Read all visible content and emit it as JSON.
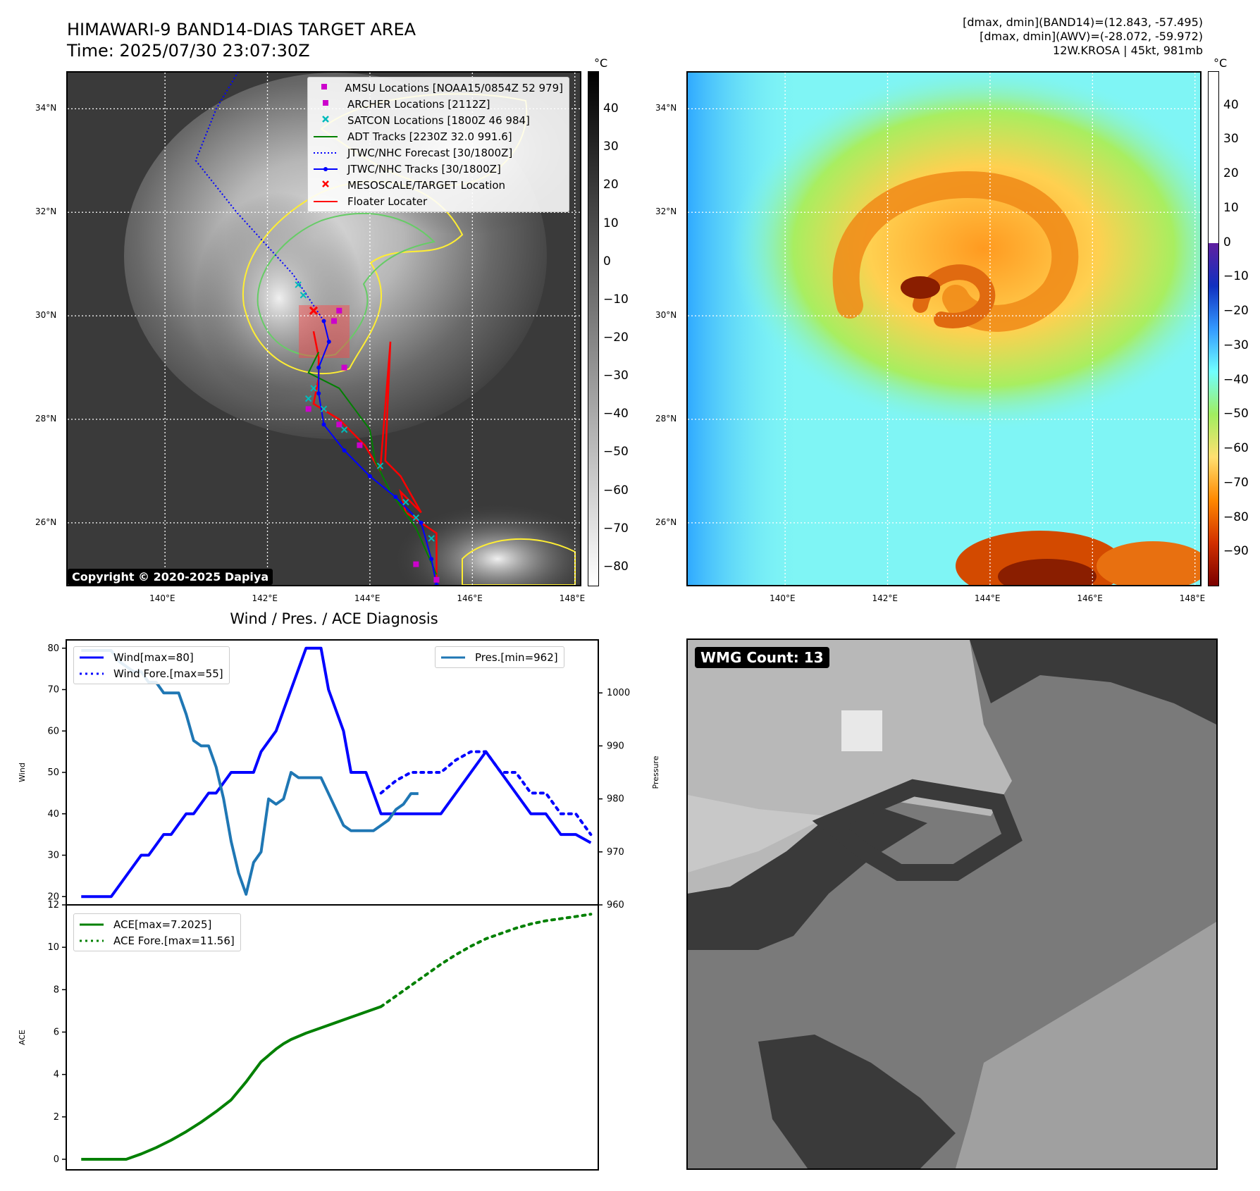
{
  "header": {
    "title_line1": "HIMAWARI-9 BAND14-DIAS TARGET AREA",
    "title_line2": "Time: 2025/07/30 23:07:30Z",
    "info_line1": "[dmax, dmin](BAND14)=(12.843, -57.495)",
    "info_line2": "[dmax, dmin](AWV)=(-28.072, -59.972)",
    "info_line3": "12W.KROSA | 45kt, 981mb"
  },
  "map": {
    "lat_labels": [
      "34°N",
      "32°N",
      "30°N",
      "28°N",
      "26°N"
    ],
    "lat_values": [
      34,
      32,
      30,
      28,
      26
    ],
    "lon_labels": [
      "140°E",
      "142°E",
      "144°E",
      "146°E",
      "148°E"
    ],
    "lon_values": [
      140,
      142,
      144,
      146,
      148
    ],
    "lon_range": [
      138.1,
      148.1
    ],
    "lat_range": [
      24.8,
      34.7
    ],
    "copyright": "Copyright © 2020-2025 Dapiya",
    "legend": [
      {
        "label": "AMSU Locations [NOAA15/0854Z 52 979]",
        "color": "#cc00cc",
        "marker": "square"
      },
      {
        "label": "ARCHER Locations [2112Z]",
        "color": "#cc00cc",
        "marker": "square"
      },
      {
        "label": "SATCON Locations [1800Z 46 984]",
        "color": "#00bbbb",
        "marker": "x"
      },
      {
        "label": "ADT Tracks [2230Z 32.0 991.6]",
        "color": "#008000",
        "marker": "line"
      },
      {
        "label": "JTWC/NHC Forecast [30/1800Z]",
        "color": "#0000ff",
        "marker": "dotted"
      },
      {
        "label": "JTWC/NHC Tracks [30/1800Z]",
        "color": "#0000ff",
        "marker": "line-dot"
      },
      {
        "label": "MESOSCALE/TARGET Location",
        "color": "#ff0000",
        "marker": "x"
      },
      {
        "label": "Floater Locater",
        "color": "#ff0000",
        "marker": "line"
      }
    ],
    "jtwc_forecast": [
      [
        143.1,
        29.9
      ],
      [
        142.5,
        30.8
      ],
      [
        141.4,
        32.0
      ],
      [
        140.6,
        33.0
      ],
      [
        141.0,
        34.0
      ],
      [
        141.9,
        35.5
      ]
    ],
    "jtwc_track": [
      [
        145.3,
        24.8
      ],
      [
        145.2,
        25.3
      ],
      [
        145.0,
        26.0
      ],
      [
        144.5,
        26.5
      ],
      [
        144.0,
        26.9
      ],
      [
        143.5,
        27.4
      ],
      [
        143.1,
        27.9
      ],
      [
        143.0,
        28.5
      ],
      [
        143.0,
        29.0
      ],
      [
        143.2,
        29.5
      ],
      [
        143.1,
        29.9
      ]
    ],
    "adt_track": [
      [
        145.3,
        25.0
      ],
      [
        144.9,
        25.9
      ],
      [
        144.4,
        26.6
      ],
      [
        144.1,
        27.2
      ],
      [
        144.0,
        27.8
      ],
      [
        143.4,
        28.6
      ],
      [
        142.8,
        28.9
      ],
      [
        143.0,
        29.3
      ]
    ],
    "floater": [
      [
        145.3,
        24.9
      ],
      [
        145.3,
        25.8
      ],
      [
        144.7,
        26.2
      ],
      [
        144.6,
        26.6
      ],
      [
        145.0,
        26.2
      ],
      [
        144.6,
        26.9
      ],
      [
        144.3,
        27.2
      ],
      [
        144.4,
        29.5
      ],
      [
        144.2,
        27.0
      ],
      [
        143.9,
        27.5
      ],
      [
        143.4,
        28.0
      ],
      [
        142.9,
        28.3
      ],
      [
        143.0,
        28.8
      ],
      [
        143.0,
        29.2
      ],
      [
        142.9,
        29.7
      ]
    ],
    "satcon": [
      [
        142.8,
        28.4
      ],
      [
        142.9,
        28.6
      ],
      [
        143.1,
        28.2
      ],
      [
        143.5,
        27.8
      ],
      [
        144.2,
        27.1
      ],
      [
        144.7,
        26.4
      ],
      [
        144.9,
        26.1
      ],
      [
        145.2,
        25.7
      ],
      [
        142.7,
        30.4
      ],
      [
        142.6,
        30.6
      ]
    ],
    "amsu": [
      [
        143.4,
        30.1
      ],
      [
        143.3,
        29.9
      ],
      [
        143.5,
        29.0
      ],
      [
        142.8,
        28.2
      ],
      [
        143.4,
        27.9
      ],
      [
        143.8,
        27.5
      ],
      [
        144.9,
        25.2
      ],
      [
        145.3,
        24.9
      ]
    ],
    "mesoscale": [
      [
        142.9,
        30.1
      ]
    ],
    "left_colorbar": {
      "unit": "°C",
      "ticks": [
        40,
        30,
        20,
        10,
        0,
        -10,
        -20,
        -30,
        -40,
        -50,
        -60,
        -70,
        -80
      ],
      "range": [
        -85,
        50
      ],
      "colors": [
        "#ffffff",
        "#000000"
      ]
    },
    "right_colorbar": {
      "unit": "°C",
      "ticks": [
        40,
        30,
        20,
        10,
        0,
        -10,
        -20,
        -30,
        -40,
        -50,
        -60,
        -70,
        -80,
        -90
      ],
      "range": [
        -100,
        50
      ],
      "colors": [
        "#7a0000",
        "#d23000",
        "#ff8800",
        "#ffe070",
        "#a0ee60",
        "#70ffff",
        "#3399ff",
        "#1030c0",
        "#6020a0",
        "#ffffff"
      ]
    }
  },
  "diag": {
    "title": "Wind / Pres. / ACE Diagnosis",
    "wind_ylabel": "Wind",
    "pres_ylabel": "Pressure",
    "ace_ylabel": "ACE",
    "wind_ticks": [
      20,
      30,
      40,
      50,
      60,
      70,
      80
    ],
    "pres_ticks": [
      960,
      970,
      980,
      990,
      1000
    ],
    "ace_ticks": [
      0,
      2,
      4,
      6,
      8,
      10,
      12
    ],
    "wind_ylim": [
      18,
      82
    ],
    "pres_ylim": [
      960,
      1010
    ],
    "ace_ylim": [
      -0.5,
      12
    ],
    "legend_wind": "Wind[max=80]",
    "legend_wind_fore": "Wind Fore.[max=55]",
    "legend_pres": "Pres.[min=962]",
    "legend_ace": "ACE[max=7.2025]",
    "legend_ace_fore": "ACE Fore.[max=11.56]"
  },
  "chart_data": {
    "type": "line",
    "x_range": [
      -2,
      69
    ],
    "series": [
      {
        "name": "Wind[max=80]",
        "color": "#0000ff",
        "style": "solid",
        "x": [
          0,
          4,
          6,
          8,
          9,
          11,
          12,
          14,
          15,
          17,
          18,
          20,
          21,
          23,
          24,
          26,
          27,
          29,
          30,
          32,
          33,
          35,
          36,
          38,
          40,
          42,
          43,
          44,
          46,
          48,
          50,
          52,
          54,
          56,
          58,
          60,
          62,
          64,
          66,
          68
        ],
        "y": [
          20,
          20,
          25,
          30,
          30,
          35,
          35,
          40,
          40,
          45,
          45,
          50,
          50,
          50,
          55,
          60,
          65,
          75,
          80,
          80,
          70,
          60,
          50,
          50,
          40,
          40,
          40,
          40,
          40,
          40,
          45,
          50,
          55,
          50,
          45,
          40,
          40,
          35,
          35,
          33
        ]
      },
      {
        "name": "Wind Fore.[max=55]",
        "color": "#0000ff",
        "style": "dotted",
        "x": [
          40,
          42,
          44,
          46,
          48,
          50,
          52,
          54,
          56,
          58,
          60,
          62,
          64,
          66,
          68
        ],
        "y": [
          45,
          48,
          50,
          50,
          50,
          53,
          55,
          55,
          50,
          50,
          45,
          45,
          40,
          40,
          35
        ]
      },
      {
        "name": "Pres.[min=962]",
        "color": "#1f77b4",
        "style": "solid",
        "x": [
          0,
          2,
          4,
          5,
          6,
          7,
          8,
          9,
          10,
          11,
          12,
          13,
          14,
          15,
          16,
          17,
          18,
          19,
          20,
          21,
          22,
          23,
          24,
          25,
          26,
          27,
          28,
          29,
          30,
          31,
          32,
          33,
          34,
          35,
          36,
          37,
          38,
          39,
          40,
          41,
          42,
          43,
          44,
          45
        ],
        "y": [
          1008,
          1008,
          1008,
          1006,
          1005,
          1004,
          1004,
          1002,
          1002,
          1000,
          1000,
          1000,
          996,
          991,
          990,
          990,
          986,
          980,
          972,
          966,
          962,
          968,
          970,
          980,
          979,
          980,
          985,
          984,
          984,
          984,
          984,
          981,
          978,
          975,
          974,
          974,
          974,
          974,
          975,
          976,
          978,
          979,
          981,
          981
        ]
      },
      {
        "name": "ACE[max=7.2025]",
        "color": "#008000",
        "style": "solid",
        "x": [
          0,
          3,
          6,
          8,
          10,
          12,
          14,
          16,
          18,
          20,
          22,
          24,
          26,
          27,
          28,
          30,
          32,
          34,
          36,
          38,
          40
        ],
        "y": [
          0,
          0,
          0,
          0.25,
          0.55,
          0.9,
          1.3,
          1.75,
          2.25,
          2.8,
          3.65,
          4.6,
          5.2,
          5.45,
          5.65,
          5.95,
          6.2,
          6.45,
          6.7,
          6.95,
          7.2
        ]
      },
      {
        "name": "ACE Fore.[max=11.56]",
        "color": "#008000",
        "style": "dotted",
        "x": [
          40,
          42,
          44,
          46,
          48,
          50,
          52,
          54,
          56,
          58,
          60,
          62,
          64,
          66,
          68
        ],
        "y": [
          7.2,
          7.7,
          8.2,
          8.7,
          9.2,
          9.65,
          10.05,
          10.4,
          10.65,
          10.9,
          11.1,
          11.25,
          11.35,
          11.45,
          11.56
        ]
      }
    ]
  },
  "wmg": {
    "label": "WMG Count: 13"
  }
}
